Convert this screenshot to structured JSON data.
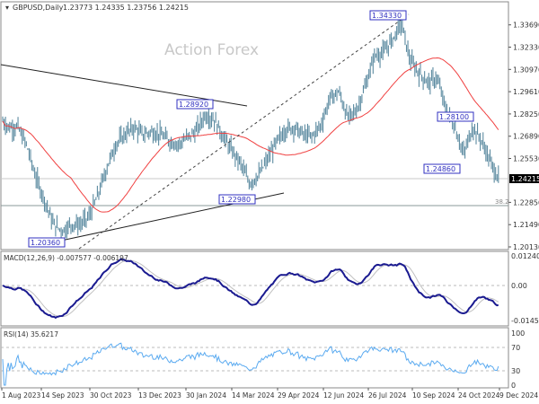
{
  "header": {
    "symbol": "GBPUSD,Daily",
    "ohlc": "1.23773 1.24335 1.23756 1.24215"
  },
  "watermark": "Action Forex",
  "colors": {
    "bars": "#5b8aa0",
    "ma": "#f04040",
    "macd": "#1a1a90",
    "signal": "#bbbbbb",
    "rsi": "#5aaaf0",
    "annotation": "#3030c0"
  },
  "chart_data": [
    {
      "type": "ohlc",
      "title": "GBPUSD,Daily",
      "price_ticks": [
        "1.33690",
        "1.32330",
        "1.30970",
        "1.29610",
        "1.28250",
        "1.26890",
        "1.25530",
        "1.22850",
        "1.21490",
        "1.20130"
      ],
      "ylim": [
        1.2013,
        1.3369
      ],
      "current_price": "1.24215",
      "fib_label": "38.2",
      "fib_level": 1.2285,
      "closes": [
        1.2798,
        1.2743,
        1.2743,
        1.2633,
        1.2441,
        1.23,
        1.215,
        1.2112,
        1.215,
        1.215,
        1.22,
        1.233,
        1.25,
        1.264,
        1.27,
        1.2743,
        1.27,
        1.2716,
        1.27,
        1.266,
        1.264,
        1.268,
        1.272,
        1.282,
        1.279,
        1.269,
        1.26,
        1.252,
        1.24,
        1.245,
        1.255,
        1.265,
        1.273,
        1.2743,
        1.27,
        1.2688,
        1.276,
        1.292,
        1.296,
        1.28,
        1.285,
        1.3,
        1.318,
        1.32,
        1.328,
        1.338,
        1.315,
        1.3073,
        1.3018,
        1.3045,
        1.2853,
        1.2743,
        1.258,
        1.2743,
        1.2661,
        1.253,
        1.2421
      ],
      "annotations": [
        "1.28920",
        "1.22980",
        "1.20360",
        "1.34330",
        "1.28100",
        "1.24860"
      ],
      "x_ticks": [
        "1 Aug 2023",
        "14 Sep 2023",
        "30 Oct 2023",
        "13 Dec 2023",
        "30 Jan 2024",
        "14 Mar 2024",
        "29 Apr 2024",
        "12 Jun 2024",
        "26 Jul 2024",
        "10 Sep 2024",
        "24 Oct 2024",
        "9 Dec 2024"
      ]
    },
    {
      "type": "line",
      "title": "MACD(12,26,9) -0.007577 -0.006197",
      "ticks": [
        "0.012403",
        "0.00",
        "-0.014502"
      ],
      "ylim": [
        -0.014502,
        0.012403
      ]
    },
    {
      "type": "line",
      "title": "RSI(14) 35.6217",
      "ticks": [
        "100",
        "70",
        "30",
        "0"
      ],
      "ylim": [
        0,
        100
      ]
    }
  ]
}
